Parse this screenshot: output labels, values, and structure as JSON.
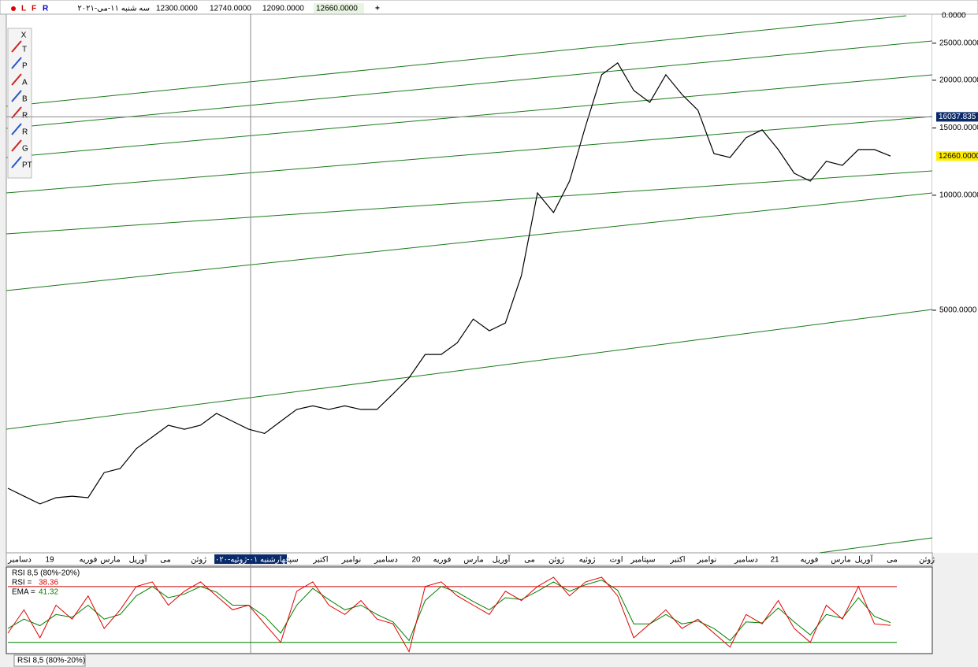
{
  "header": {
    "markers": [
      "L",
      "F",
      "R"
    ],
    "date": "سه شنبه ۱۱-می-۲۰۲۱",
    "open": "12300.0000",
    "high": "12740.0000",
    "low": "12090.0000",
    "close": "12660.0000",
    "add": "+"
  },
  "toolbar": {
    "close": "X",
    "tools": [
      "T",
      "P",
      "A",
      "B",
      "R",
      "R",
      "G",
      "PT"
    ]
  },
  "chart_data": [
    {
      "type": "line",
      "log_scale": true,
      "color": "#000000",
      "values": [
        1710,
        1630,
        1556,
        1616,
        1630,
        1616,
        1880,
        1926,
        2170,
        2330,
        2500,
        2440,
        2500,
        2685,
        2560,
        2440,
        2380,
        2560,
        2750,
        2810,
        2750,
        2810,
        2750,
        2750,
        3020,
        3330,
        3830,
        3830,
        4110,
        4740,
        4420,
        4630,
        6160,
        10140,
        9010,
        10890,
        15180,
        20670,
        22200,
        18800,
        17500,
        20670,
        18360,
        16700,
        12850,
        12560,
        14150,
        14830,
        13170,
        11420,
        10890,
        12270,
        11980,
        13170,
        13170,
        12660
      ],
      "ylim": [
        1170,
        29500
      ],
      "yticks": [
        {
          "value": 5000,
          "label": "5000.0000"
        },
        {
          "value": 10000,
          "label": "10000.0000"
        },
        {
          "value": 15000,
          "label": "15000.0000"
        },
        {
          "value": 20000,
          "label": "20000.0000"
        },
        {
          "value": 25000,
          "label": "25000.0000"
        }
      ],
      "axis_top_label": "0.0000",
      "crosshair": {
        "value": 16037.835,
        "label": "16037.835",
        "date": "چهارشنبه ۰۱-ژوئیه-۲۰۲۰"
      },
      "x_axis_labels": [
        "دسامبر",
        "19",
        "فوریه",
        "مارس",
        "آوریل",
        "می",
        "ژوئن",
        "سپتامبر",
        "اکتبر",
        "نوامبر",
        "دسامبر",
        "20",
        "فوریه",
        "مارس",
        "آوریل",
        "می",
        "ژوئن",
        "ژوئیه",
        "اوت",
        "سپتامبر",
        "اکتبر",
        "نوامبر",
        "دسامبر",
        "21",
        "فوریه",
        "مارس",
        "آوریل",
        "می",
        "ژوئن"
      ]
    },
    {
      "type": "line",
      "title": "RSI 8,5 (80%-20%)",
      "ylim": [
        8,
        101
      ],
      "levels": [
        {
          "value": 80,
          "color": "#cc0000"
        },
        {
          "value": 20,
          "color": "#008000"
        }
      ],
      "series": [
        {
          "name": "RSI =",
          "color": "#e00000",
          "values": [
            30,
            55,
            25,
            60,
            45,
            70,
            35,
            55,
            80,
            85,
            60,
            75,
            85,
            70,
            55,
            60,
            40,
            20,
            75,
            85,
            60,
            50,
            65,
            45,
            40,
            10,
            80,
            85,
            70,
            60,
            50,
            75,
            65,
            80,
            90,
            70,
            85,
            90,
            70,
            25,
            40,
            55,
            35,
            45,
            30,
            15,
            50,
            40,
            65,
            35,
            20,
            60,
            45,
            80,
            40,
            38.36
          ]
        },
        {
          "name": "EMA =",
          "color": "#008000",
          "values": [
            35,
            45,
            38,
            50,
            47,
            60,
            45,
            50,
            70,
            80,
            68,
            72,
            80,
            74,
            60,
            60,
            48,
            30,
            60,
            78,
            66,
            55,
            60,
            50,
            42,
            22,
            65,
            80,
            74,
            64,
            55,
            68,
            66,
            75,
            85,
            75,
            82,
            87,
            76,
            40,
            40,
            50,
            40,
            43,
            35,
            22,
            42,
            41,
            57,
            42,
            28,
            50,
            46,
            68,
            48,
            41.32
          ]
        }
      ]
    }
  ]
}
